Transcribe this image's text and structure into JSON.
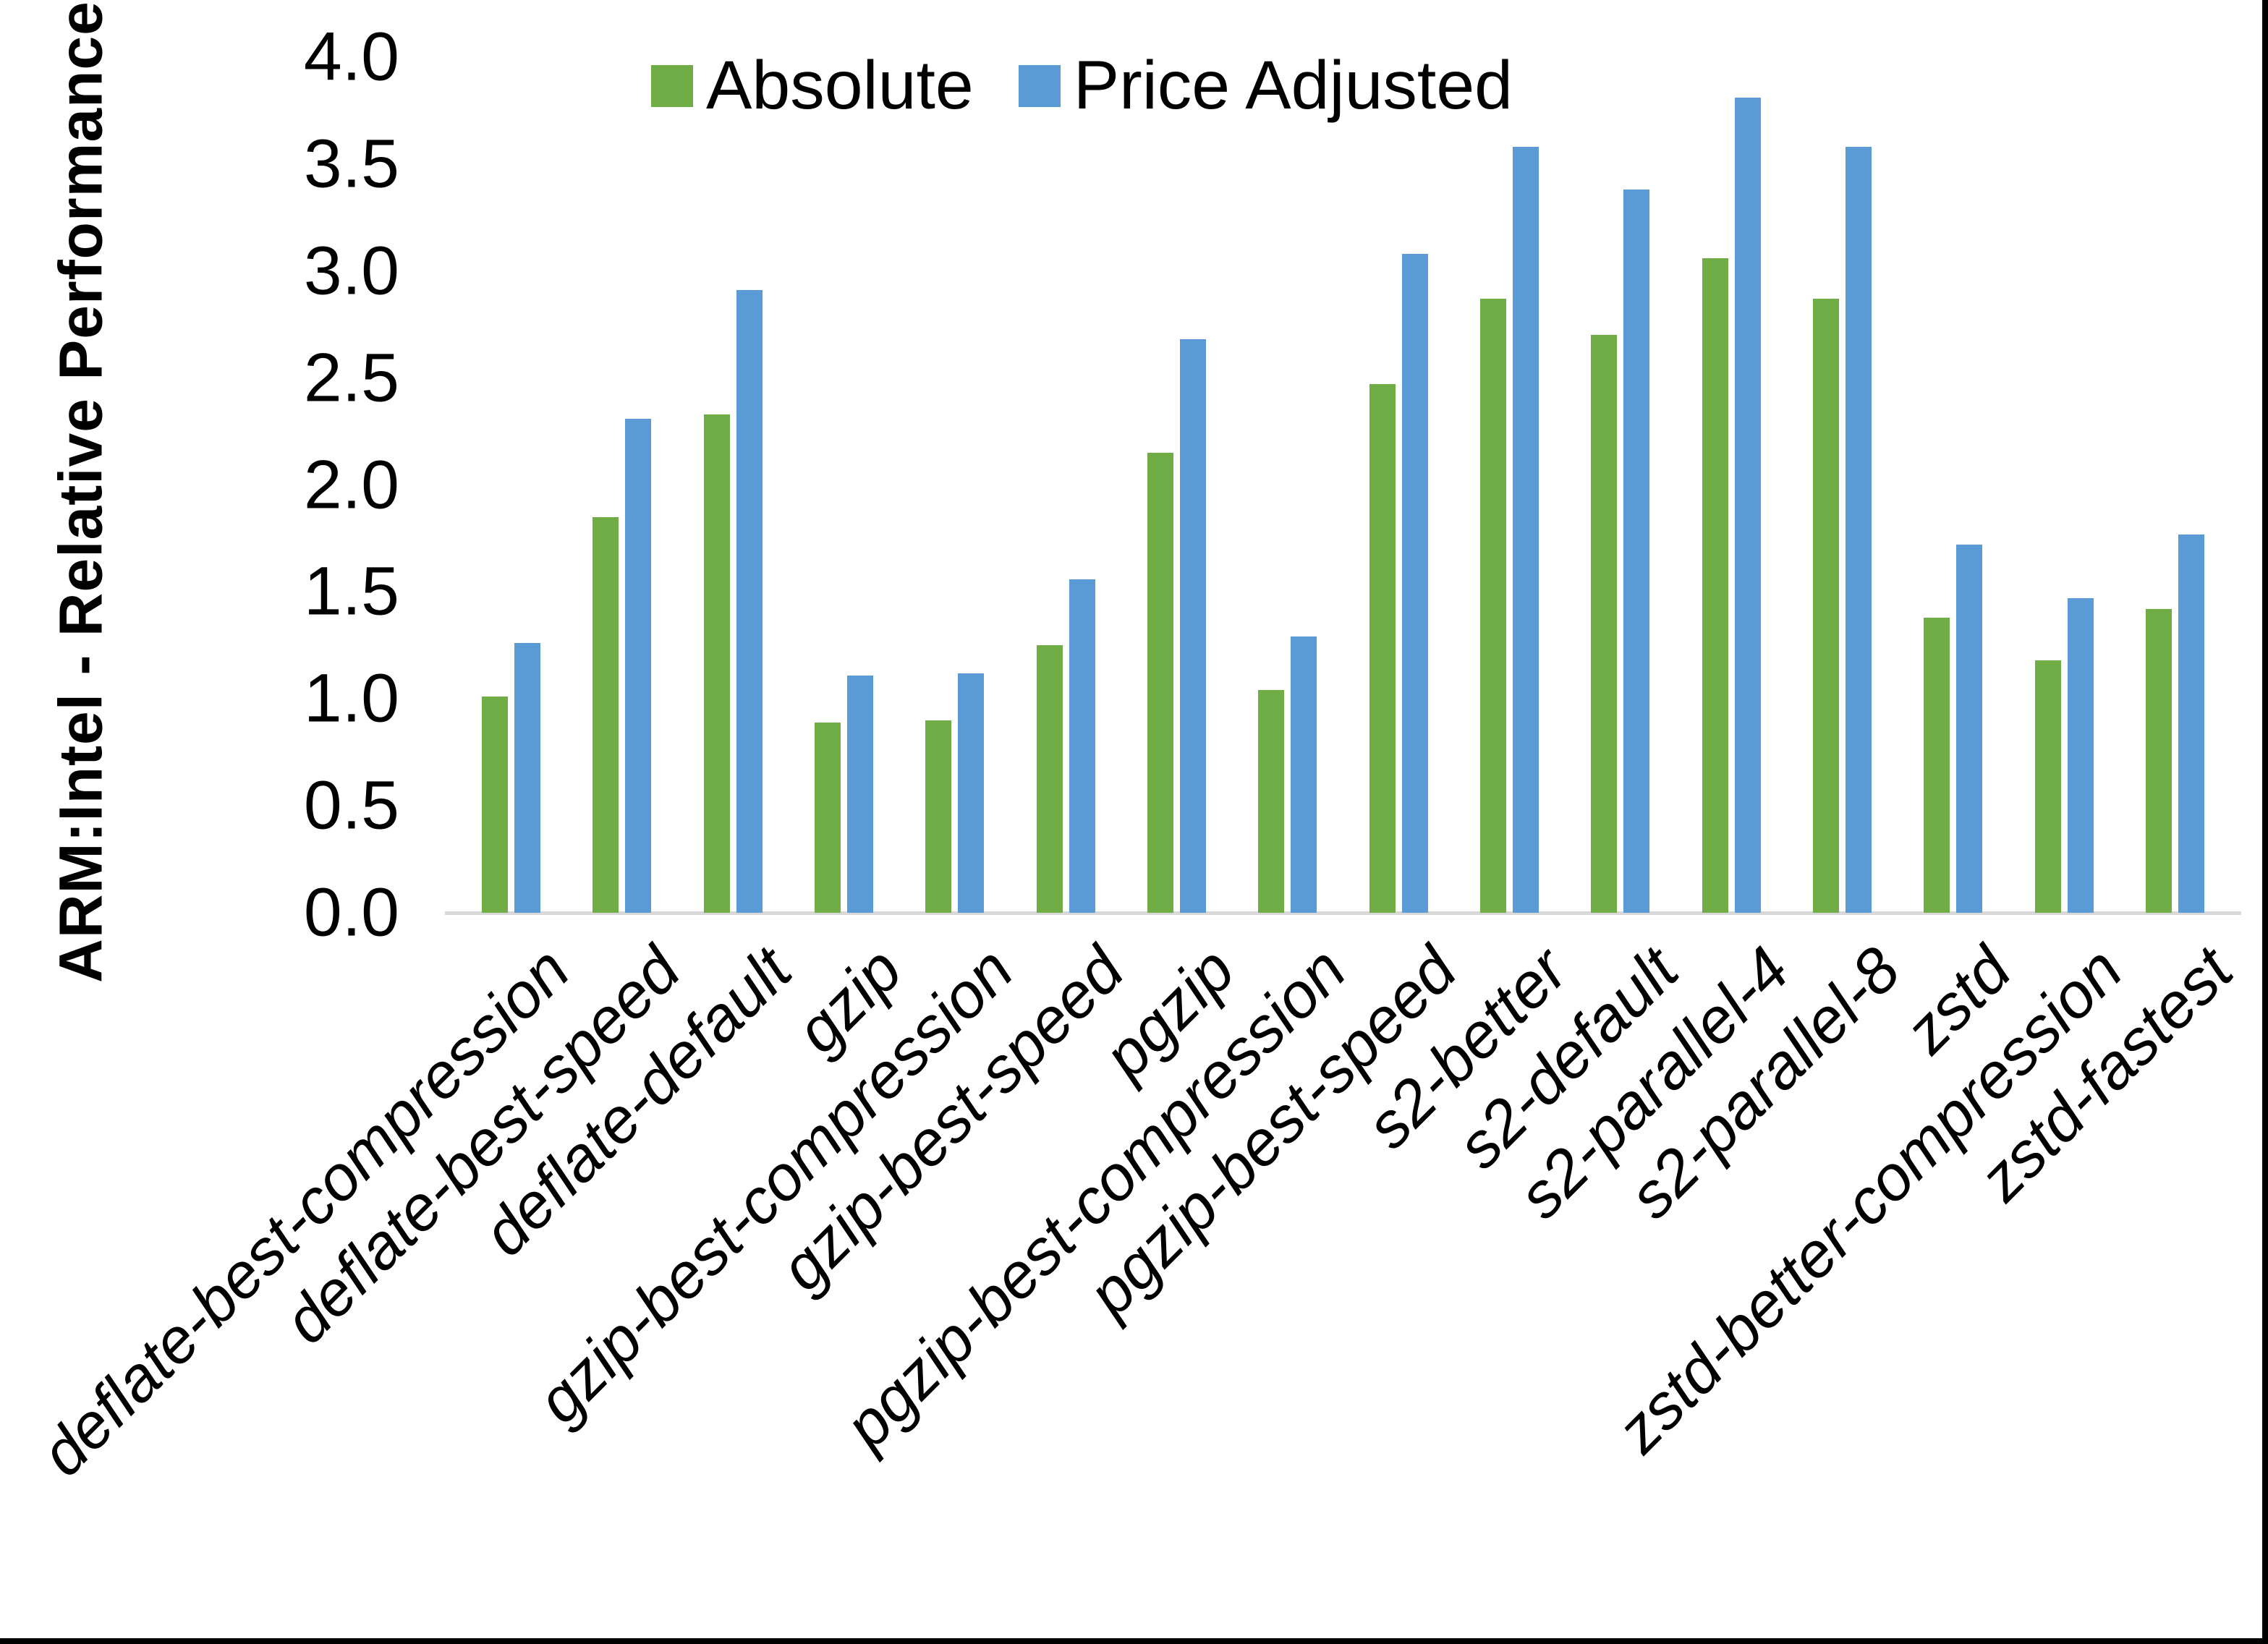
{
  "page": {
    "background": "#ffffff",
    "frame_border_color": "#000000"
  },
  "chart_data": {
    "type": "bar",
    "title": "",
    "xlabel": "",
    "ylabel": "ARM:Intel - Relative Performance",
    "ylim": [
      0,
      4.0
    ],
    "ytick_step": 0.5,
    "yticks": [
      "4.0",
      "3.5",
      "3.0",
      "2.5",
      "2.0",
      "1.5",
      "1.0",
      "0.5",
      "0.0"
    ],
    "grid": false,
    "legend_position": "top-center",
    "axis_line_color": "#d9d9d9",
    "categories": [
      "deflate-best-compression",
      "deflate-best-speed",
      "deflate-default",
      "gzip",
      "gzip-best-compression",
      "gzip-best-speed",
      "pgzip",
      "pgzip-best-compression",
      "pgzip-best-speed",
      "s2-better",
      "s2-default",
      "s2-parallel-4",
      "s2-parallel-8",
      "zstd",
      "zstd-better-compression",
      "zstd-fastest"
    ],
    "series": [
      {
        "name": "Absolute",
        "color": "#70AD47",
        "values": [
          1.01,
          1.85,
          2.33,
          0.89,
          0.9,
          1.25,
          2.15,
          1.04,
          2.47,
          2.87,
          2.7,
          3.06,
          2.87,
          1.38,
          1.18,
          1.42
        ]
      },
      {
        "name": "Price Adjusted",
        "color": "#5B9BD5",
        "values": [
          1.26,
          2.31,
          2.91,
          1.11,
          1.12,
          1.56,
          2.68,
          1.29,
          3.08,
          3.58,
          3.38,
          3.81,
          3.58,
          1.72,
          1.47,
          1.77
        ]
      }
    ]
  }
}
